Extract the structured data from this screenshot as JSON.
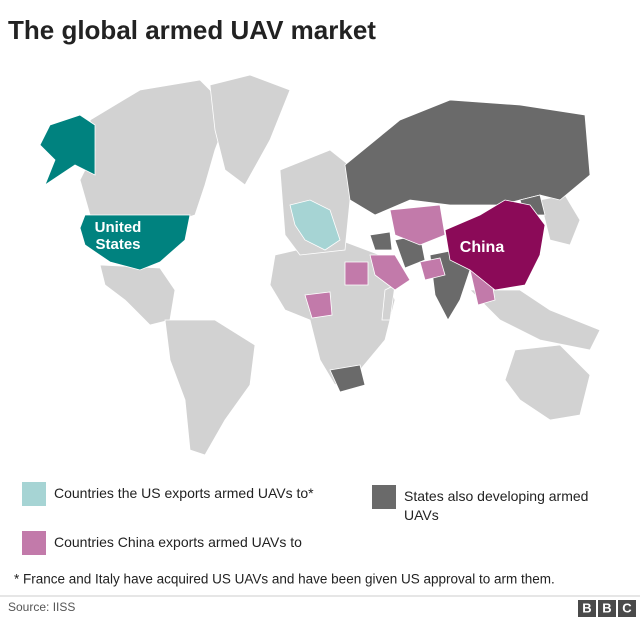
{
  "title": "The global armed UAV market",
  "map": {
    "labels": [
      {
        "text": "United States",
        "lines": [
          "United",
          "States"
        ],
        "color": "#00827f"
      },
      {
        "text": "China",
        "lines": [
          "China"
        ],
        "color": "#8b0a58"
      }
    ],
    "land_color": "#d2d2d2"
  },
  "legend": [
    {
      "label": "Countries the US exports armed UAVs to*",
      "color": "#a6d4d4"
    },
    {
      "label": "States also developing armed UAVs",
      "lines": [
        "States also developing armed",
        "UAVs"
      ],
      "color": "#6a6a6a"
    },
    {
      "label": "Countries China exports armed UAVs to",
      "color": "#c27aaa"
    }
  ],
  "footnote": "* France and Italy have acquired US UAVs and have been given US approval to arm them.",
  "source": "Source: IISS",
  "logo": [
    "B",
    "B",
    "C"
  ]
}
